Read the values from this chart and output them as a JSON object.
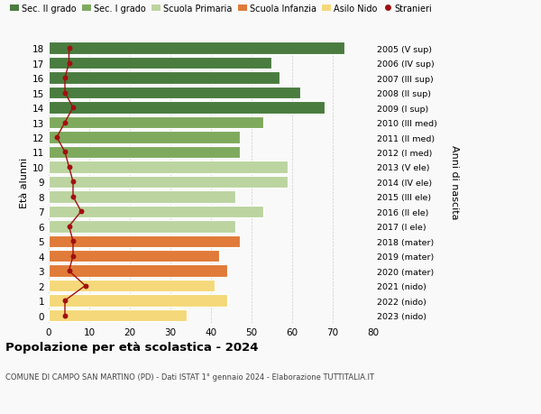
{
  "ages": [
    18,
    17,
    16,
    15,
    14,
    13,
    12,
    11,
    10,
    9,
    8,
    7,
    6,
    5,
    4,
    3,
    2,
    1,
    0
  ],
  "bar_values": [
    73,
    55,
    57,
    62,
    68,
    53,
    47,
    47,
    59,
    59,
    46,
    53,
    46,
    47,
    42,
    44,
    41,
    44,
    34
  ],
  "bar_colors": [
    "#4a7c3f",
    "#4a7c3f",
    "#4a7c3f",
    "#4a7c3f",
    "#4a7c3f",
    "#7faa5e",
    "#7faa5e",
    "#7faa5e",
    "#bcd4a0",
    "#bcd4a0",
    "#bcd4a0",
    "#bcd4a0",
    "#bcd4a0",
    "#e07b39",
    "#e07b39",
    "#e07b39",
    "#f5d87a",
    "#f5d87a",
    "#f5d87a"
  ],
  "stranieri_values": [
    5,
    5,
    4,
    4,
    6,
    4,
    2,
    4,
    5,
    6,
    6,
    8,
    5,
    6,
    6,
    5,
    9,
    4,
    4
  ],
  "right_labels": [
    "2005 (V sup)",
    "2006 (IV sup)",
    "2007 (III sup)",
    "2008 (II sup)",
    "2009 (I sup)",
    "2010 (III med)",
    "2011 (II med)",
    "2012 (I med)",
    "2013 (V ele)",
    "2014 (IV ele)",
    "2015 (III ele)",
    "2016 (II ele)",
    "2017 (I ele)",
    "2018 (mater)",
    "2019 (mater)",
    "2020 (mater)",
    "2021 (nido)",
    "2022 (nido)",
    "2023 (nido)"
  ],
  "color_sec2": "#4a7c3f",
  "color_sec1": "#7faa5e",
  "color_primaria": "#bcd4a0",
  "color_infanzia": "#e07b39",
  "color_nido": "#f5d87a",
  "color_stranieri": "#a01010",
  "title": "Popolazione per età scolastica - 2024",
  "subtitle": "COMUNE DI CAMPO SAN MARTINO (PD) - Dati ISTAT 1° gennaio 2024 - Elaborazione TUTTITALIA.IT",
  "ylabel_left": "Età alunni",
  "ylabel_right": "Anni di nascita",
  "xlim": [
    0,
    80
  ],
  "bg_color": "#f9f9f9"
}
